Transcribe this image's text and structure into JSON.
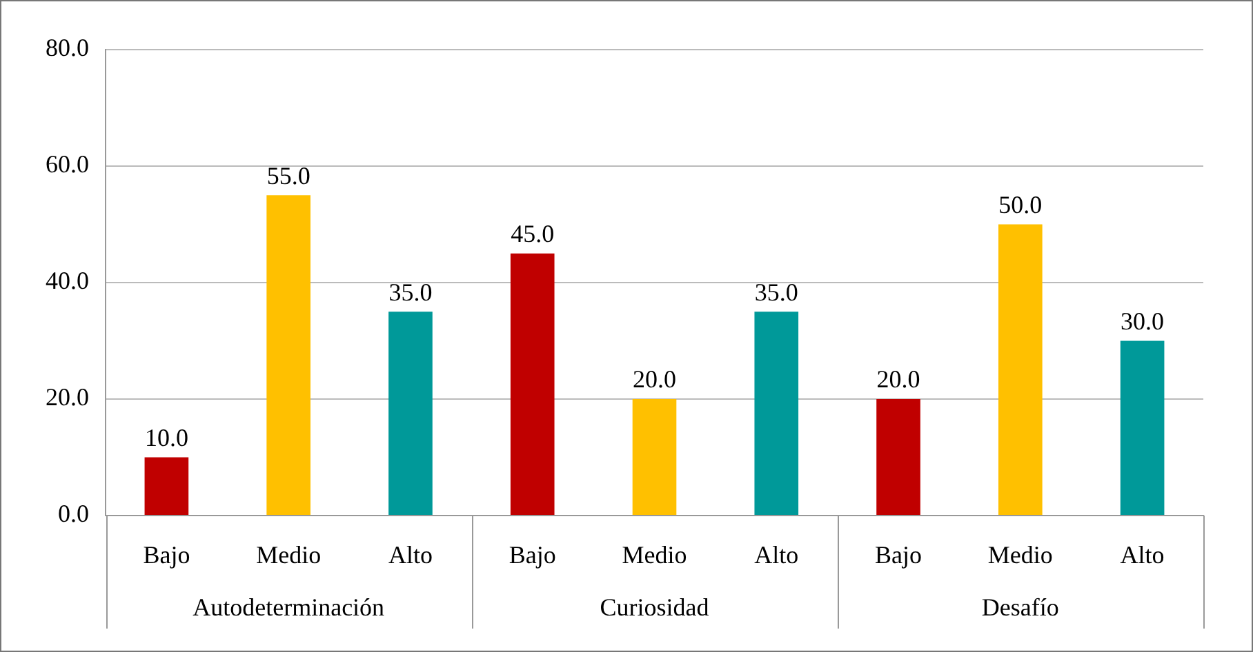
{
  "chart_data": {
    "type": "bar",
    "categories": [
      "Autodeterminación",
      "Curiosidad",
      "Desafío"
    ],
    "series": [
      {
        "name": "Bajo",
        "color": "#c00000",
        "values": [
          10.0,
          45.0,
          20.0
        ],
        "value_labels": [
          "10.0",
          "45.0",
          "20.0"
        ]
      },
      {
        "name": "Medio",
        "color": "#ffc000",
        "values": [
          55.0,
          20.0,
          50.0
        ],
        "value_labels": [
          "55.0",
          "20.0",
          "50.0"
        ]
      },
      {
        "name": "Alto",
        "color": "#009999",
        "values": [
          35.0,
          35.0,
          30.0
        ],
        "value_labels": [
          "35.0",
          "35.0",
          "30.0"
        ]
      }
    ],
    "ylim": [
      0,
      80
    ],
    "yticks": [
      {
        "value": 0,
        "label": "0.0"
      },
      {
        "value": 20,
        "label": "20.0"
      },
      {
        "value": 40,
        "label": "40.0"
      },
      {
        "value": 60,
        "label": "60.0"
      },
      {
        "value": 80,
        "label": "80.0"
      }
    ],
    "grid": "y",
    "legend": false
  }
}
